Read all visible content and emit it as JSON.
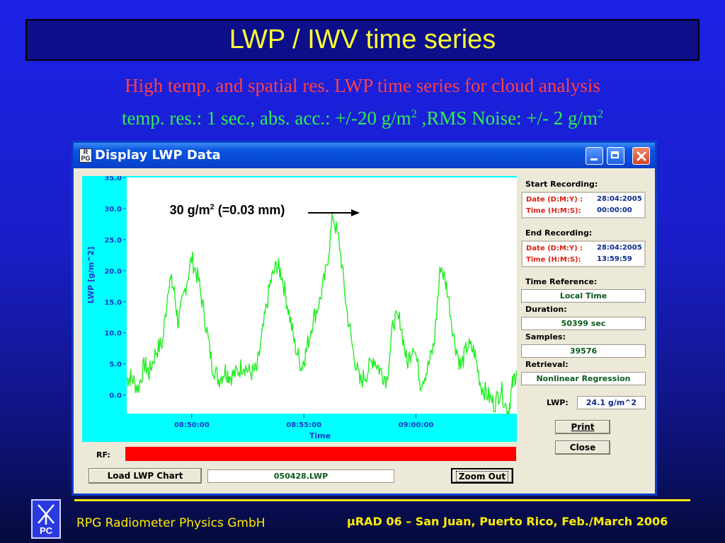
{
  "slide": {
    "title": "LWP / IWV time series",
    "subtitle1": "High temp. and spatial res. LWP time series for cloud analysis",
    "subtitle2_a": "temp. res.: 1 sec., abs. acc.: +/-20 g/m",
    "subtitle2_sup1": "2",
    "subtitle2_b": " ,RMS Noise: +/- 2 g/m",
    "subtitle2_sup2": "2",
    "footer_company": "RPG Radiometer Physics GmbH",
    "footer_conference": "µRAD 06  – San Juan, Puerto Rico,  Feb./March  2006",
    "logo_text": "PC"
  },
  "window": {
    "title": "Display LWP Data",
    "app_icon_text": "R\nPG"
  },
  "annotation": {
    "text_a": "30 g/m",
    "sup": "2",
    "text_b": " (=0.03 mm)"
  },
  "panel": {
    "start_label": "Start Recording:",
    "start_date_label": "Date (D:M:Y) :",
    "start_date": "28:04:2005",
    "start_time_label": "Time (H:M:S):",
    "start_time": "00:00:00",
    "end_label": "End Recording:",
    "end_date_label": "Date (D:M:Y) :",
    "end_date": "28:04:2005",
    "end_time_label": "Time (H:M:S):",
    "end_time": "13:59:59",
    "timeref_label": "Time Reference:",
    "timeref": "Local Time",
    "duration_label": "Duration:",
    "duration": "50399 sec",
    "samples_label": "Samples:",
    "samples": "39576",
    "retrieval_label": "Retrieval:",
    "retrieval": "Nonlinear Regression",
    "lwp_label": "LWP:",
    "lwp_value": "24.1 g/m^2",
    "print_label": "Print",
    "close_label": "Close"
  },
  "bottom": {
    "rf_label": "RF:",
    "load_label": "Load LWP Chart",
    "file_name": "050428.LWP",
    "zoom_label": "Zoom Out"
  },
  "colors": {
    "rf_bar": "#ff0000",
    "series": "#22ee22",
    "plot_frame": "#00ffff"
  },
  "chart_data": {
    "type": "line",
    "title": "",
    "xlabel": "Time",
    "ylabel": "LWP [g/m^2]",
    "ylim": [
      -3,
      35
    ],
    "yticks": [
      "35.0",
      "30.0",
      "25.0",
      "20.0",
      "15.0",
      "10.0",
      "5.0",
      "0.0"
    ],
    "xticks": [
      "08:50:00",
      "08:55:00",
      "09:00:00"
    ],
    "xtick_minutes": [
      0,
      5,
      10
    ],
    "x_minutes_range": [
      -2.9,
      14.5
    ],
    "grid": false,
    "series": [
      {
        "name": "",
        "x_minutes": [
          -2.9,
          -2.7,
          -2.4,
          -2.1,
          -1.9,
          -1.6,
          -1.3,
          -1.0,
          -0.8,
          -0.6,
          -0.3,
          0.0,
          0.3,
          0.6,
          0.9,
          1.2,
          1.5,
          1.7,
          2.0,
          2.3,
          2.6,
          2.9,
          3.2,
          3.5,
          3.8,
          4.0,
          4.3,
          4.6,
          4.9,
          5.1,
          5.4,
          5.7,
          6.0,
          6.3,
          6.6,
          6.9,
          7.2,
          7.5,
          7.8,
          8.1,
          8.4,
          8.7,
          9.0,
          9.3,
          9.6,
          9.9,
          10.2,
          10.5,
          10.8,
          11.1,
          11.4,
          11.7,
          12.0,
          12.3,
          12.6,
          12.9,
          13.2,
          13.5,
          13.8,
          14.1,
          14.3,
          14.5
        ],
        "values": [
          2.5,
          3.0,
          1.0,
          5.0,
          3.5,
          7.0,
          8.5,
          19.0,
          17.0,
          11.5,
          17.0,
          22.0,
          18.5,
          12.0,
          5.0,
          2.5,
          4.0,
          3.0,
          3.5,
          5.0,
          3.5,
          4.0,
          11.0,
          18.0,
          21.0,
          19.5,
          14.0,
          8.0,
          4.5,
          7.0,
          12.0,
          15.0,
          20.0,
          29.0,
          24.0,
          14.0,
          7.0,
          2.0,
          3.5,
          6.0,
          4.0,
          2.5,
          12.0,
          12.0,
          5.0,
          8.5,
          2.0,
          4.0,
          8.0,
          21.0,
          17.0,
          9.0,
          4.5,
          8.0,
          7.0,
          1.5,
          0.0,
          -1.5,
          1.0,
          -3.0,
          1.5,
          4.0
        ]
      }
    ]
  }
}
